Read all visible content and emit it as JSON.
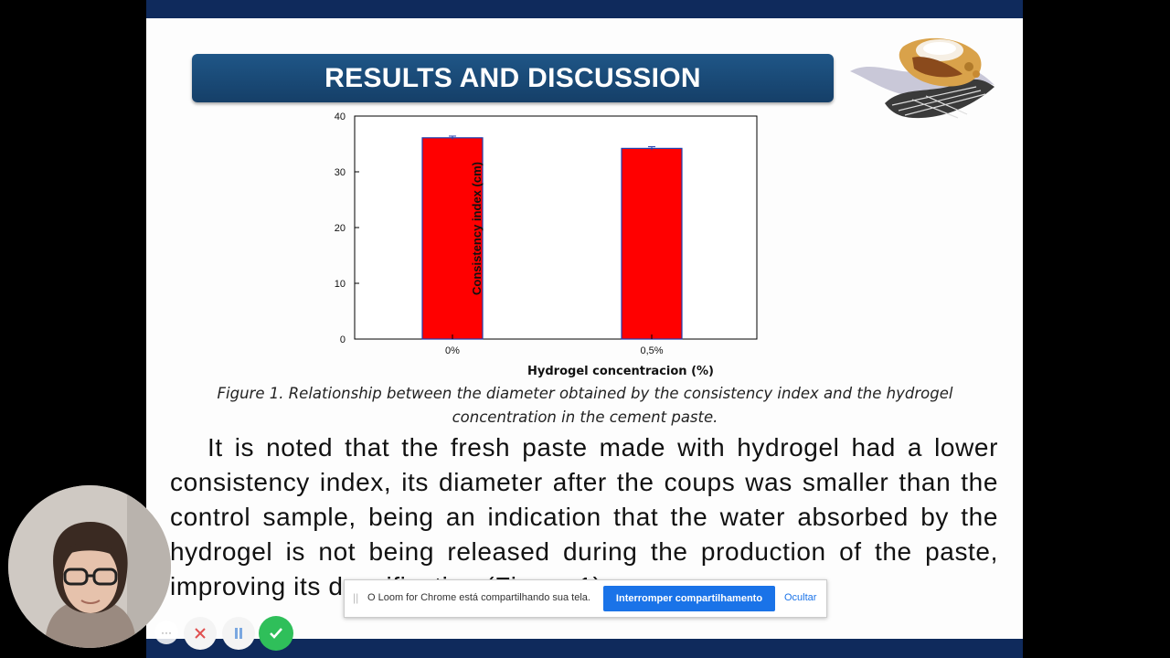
{
  "slide": {
    "title": "RESULTS AND DISCUSSION",
    "caption": "Figure 1. Relationship between the diameter obtained by the consistency index and the hydrogel concentration in the cement paste.",
    "body": "It is noted that the fresh paste made with hydrogel had a lower consistency index, its diameter after the coups was smaller than the control sample, being an indication that the water absorbed by the hydrogel is not being released during the production of the paste, improving its densification (Figure 1)",
    "logo_icon": "food-materials-logo-icon"
  },
  "chart_data": {
    "type": "bar",
    "categories": [
      "0%",
      "0,5%"
    ],
    "values": [
      36.1,
      34.2
    ],
    "errors": [
      0.3,
      0.3
    ],
    "xlabel": "Hydrogel concentracion (%)",
    "ylabel": "Consistency index (cm)",
    "ylim": [
      0,
      40
    ],
    "yticks": [
      "0",
      "10",
      "20",
      "30",
      "40"
    ],
    "bar_color": "#ff0000",
    "bar_edge_color": "#1f3fae",
    "grid": false
  },
  "loom": {
    "message": "O Loom for Chrome está compartilhando sua tela.",
    "stop_label": "Interromper compartilhamento",
    "hide_label": "Ocultar"
  },
  "recording_controls": {
    "more_label": "···",
    "colors": {
      "done": "#2fbf5a",
      "close": "#e05050",
      "pause": "#7aa7e0"
    }
  },
  "colors": {
    "banner": "#1a4a78",
    "bars_frame": "#0f2a5c"
  }
}
